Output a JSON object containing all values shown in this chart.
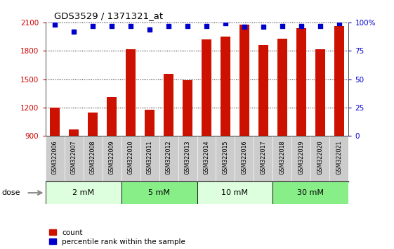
{
  "title": "GDS3529 / 1371321_at",
  "samples": [
    "GSM322006",
    "GSM322007",
    "GSM322008",
    "GSM322009",
    "GSM322010",
    "GSM322011",
    "GSM322012",
    "GSM322013",
    "GSM322014",
    "GSM322015",
    "GSM322016",
    "GSM322017",
    "GSM322018",
    "GSM322019",
    "GSM322020",
    "GSM322021"
  ],
  "counts": [
    1200,
    970,
    1150,
    1310,
    1820,
    1180,
    1560,
    1490,
    1920,
    1950,
    2080,
    1860,
    1930,
    2040,
    1820,
    2060
  ],
  "percentiles": [
    98,
    92,
    97,
    97,
    97,
    94,
    97,
    97,
    97,
    99,
    96,
    96,
    97,
    97,
    97,
    99
  ],
  "bar_color": "#cc1100",
  "dot_color": "#0000cc",
  "ylim_left": [
    900,
    2100
  ],
  "ylim_right": [
    0,
    100
  ],
  "yticks_left": [
    900,
    1200,
    1500,
    1800,
    2100
  ],
  "yticks_right": [
    0,
    25,
    50,
    75,
    100
  ],
  "dose_groups": [
    {
      "label": "2 mM",
      "start": 0,
      "end": 4,
      "color": "#ddffdd"
    },
    {
      "label": "5 mM",
      "start": 4,
      "end": 8,
      "color": "#88ee88"
    },
    {
      "label": "10 mM",
      "start": 8,
      "end": 12,
      "color": "#ddffdd"
    },
    {
      "label": "30 mM",
      "start": 12,
      "end": 16,
      "color": "#88ee88"
    }
  ],
  "legend_count_label": "count",
  "legend_pct_label": "percentile rank within the sample",
  "bg_color": "#ffffff",
  "plot_bg_color": "#ffffff",
  "bar_bg_color": "#cccccc",
  "xlabel_color": "#cc0000",
  "ylabel_right_color": "#0000cc",
  "grid_color": "#000000",
  "dose_label": "dose"
}
